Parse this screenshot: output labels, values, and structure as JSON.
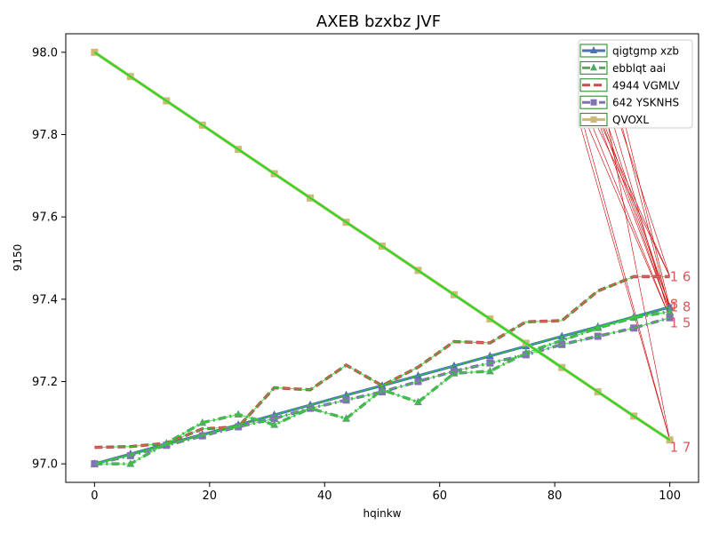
{
  "chart_data": {
    "type": "line",
    "title": "AXEB bzxbz JVF",
    "xlabel": "hqinkw",
    "ylabel": "9150",
    "xlim": [
      -5,
      105
    ],
    "ylim": [
      96.955,
      98.045
    ],
    "xticks": [
      0,
      20,
      40,
      60,
      80,
      100
    ],
    "yticks": [
      97.0,
      97.2,
      97.4,
      97.6,
      97.8,
      98.0
    ],
    "ytick_labels": [
      "97.0",
      "97.2",
      "97.4",
      "97.6",
      "97.8",
      "98.0"
    ],
    "grid": false,
    "legend_position": "top-right",
    "x": [
      0,
      6.25,
      12.5,
      18.75,
      25,
      31.25,
      37.5,
      43.75,
      50,
      56.25,
      62.5,
      68.75,
      75,
      81.25,
      87.5,
      93.75,
      100
    ],
    "series": [
      {
        "name": "qigtgmp xzb",
        "color": "#4c72b0",
        "linestyle": "solid",
        "marker": "^",
        "values": [
          97.0,
          97.024,
          97.048,
          97.071,
          97.095,
          97.119,
          97.143,
          97.167,
          97.19,
          97.214,
          97.238,
          97.262,
          97.286,
          97.31,
          97.333,
          97.357,
          97.381
        ]
      },
      {
        "name": "ebblqt aai",
        "color": "#55a868",
        "linestyle": "dashdot",
        "marker": "^",
        "values": [
          97.0,
          97.0,
          97.05,
          97.1,
          97.12,
          97.095,
          97.135,
          97.11,
          97.18,
          97.15,
          97.22,
          97.225,
          97.27,
          97.3,
          97.33,
          97.355,
          97.37
        ]
      },
      {
        "name": "4944 VGMLV",
        "color": "#c44e52",
        "linestyle": "dashed",
        "marker": "",
        "values": [
          97.04,
          97.042,
          97.05,
          97.085,
          97.09,
          97.185,
          97.18,
          97.24,
          97.19,
          97.235,
          97.297,
          97.294,
          97.345,
          97.348,
          97.42,
          97.455,
          97.455
        ]
      },
      {
        "name": "642 YSKNHS",
        "color": "#8172b2",
        "linestyle": "dashdot",
        "marker": "s",
        "values": [
          97.0,
          97.02,
          97.045,
          97.068,
          97.09,
          97.11,
          97.135,
          97.155,
          97.175,
          97.2,
          97.225,
          97.245,
          97.265,
          97.29,
          97.31,
          97.33,
          97.355
        ]
      },
      {
        "name": "QVOXL",
        "color": "#ccb974",
        "linestyle": "solid",
        "marker": "s",
        "values": [
          98.0,
          97.941,
          97.882,
          97.823,
          97.764,
          97.705,
          97.646,
          97.587,
          97.529,
          97.47,
          97.411,
          97.352,
          97.293,
          97.234,
          97.175,
          97.116,
          97.058
        ]
      }
    ],
    "end_labels": [
      {
        "text": "16",
        "series": 2
      },
      {
        "text": "18",
        "series": 0
      },
      {
        "text": "8",
        "series": 1
      },
      {
        "text": "15",
        "series": 3
      },
      {
        "text": "17",
        "series": 4
      }
    ],
    "connector_color": "#cc0000",
    "overlay_color": "#22dd22"
  }
}
